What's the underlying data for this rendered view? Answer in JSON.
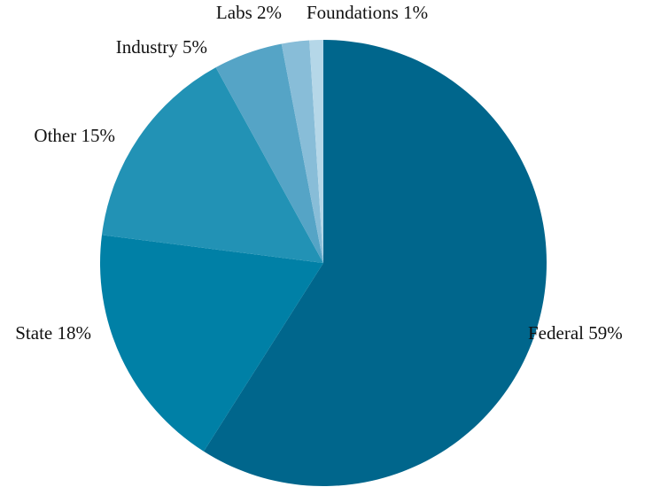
{
  "chart_data": {
    "type": "pie",
    "categories": [
      "Federal",
      "State",
      "Other",
      "Industry",
      "Labs",
      "Foundations"
    ],
    "values": [
      59,
      18,
      15,
      5,
      2,
      1
    ],
    "value_labels": [
      "59%",
      "18%",
      "15%",
      "5%",
      "2%",
      "1%"
    ],
    "colors": [
      "#00668c",
      "#0080a6",
      "#2292b5",
      "#55a4c6",
      "#88bdd8",
      "#b5d7e8"
    ]
  }
}
